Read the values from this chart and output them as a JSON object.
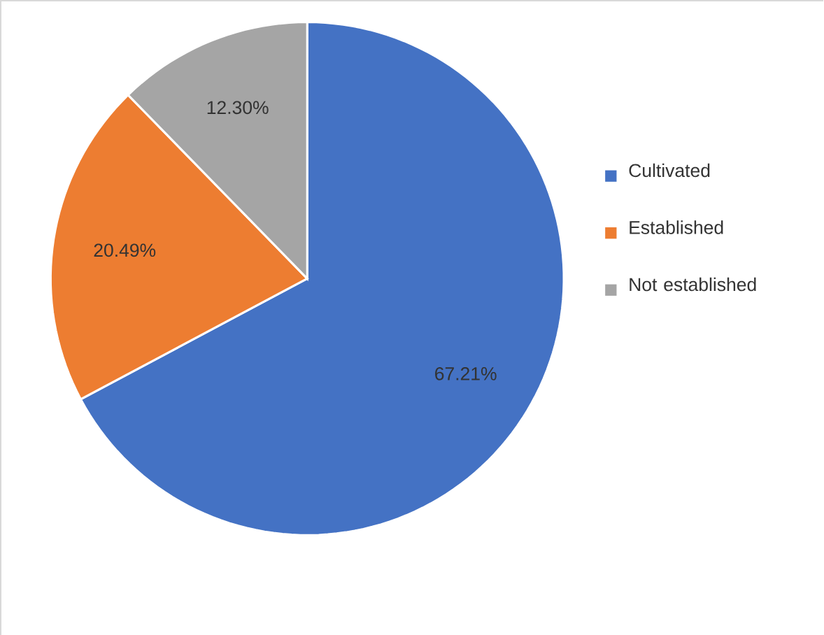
{
  "chart_data": {
    "type": "pie",
    "categories": [
      "Cultivated",
      "Established",
      "Not established"
    ],
    "values": [
      67.21,
      20.49,
      12.3
    ],
    "colors": [
      "#4472c4",
      "#ed7d31",
      "#a5a5a5"
    ],
    "value_labels": [
      "67.21%",
      "20.49%",
      "12.30%"
    ],
    "legend": "right"
  }
}
